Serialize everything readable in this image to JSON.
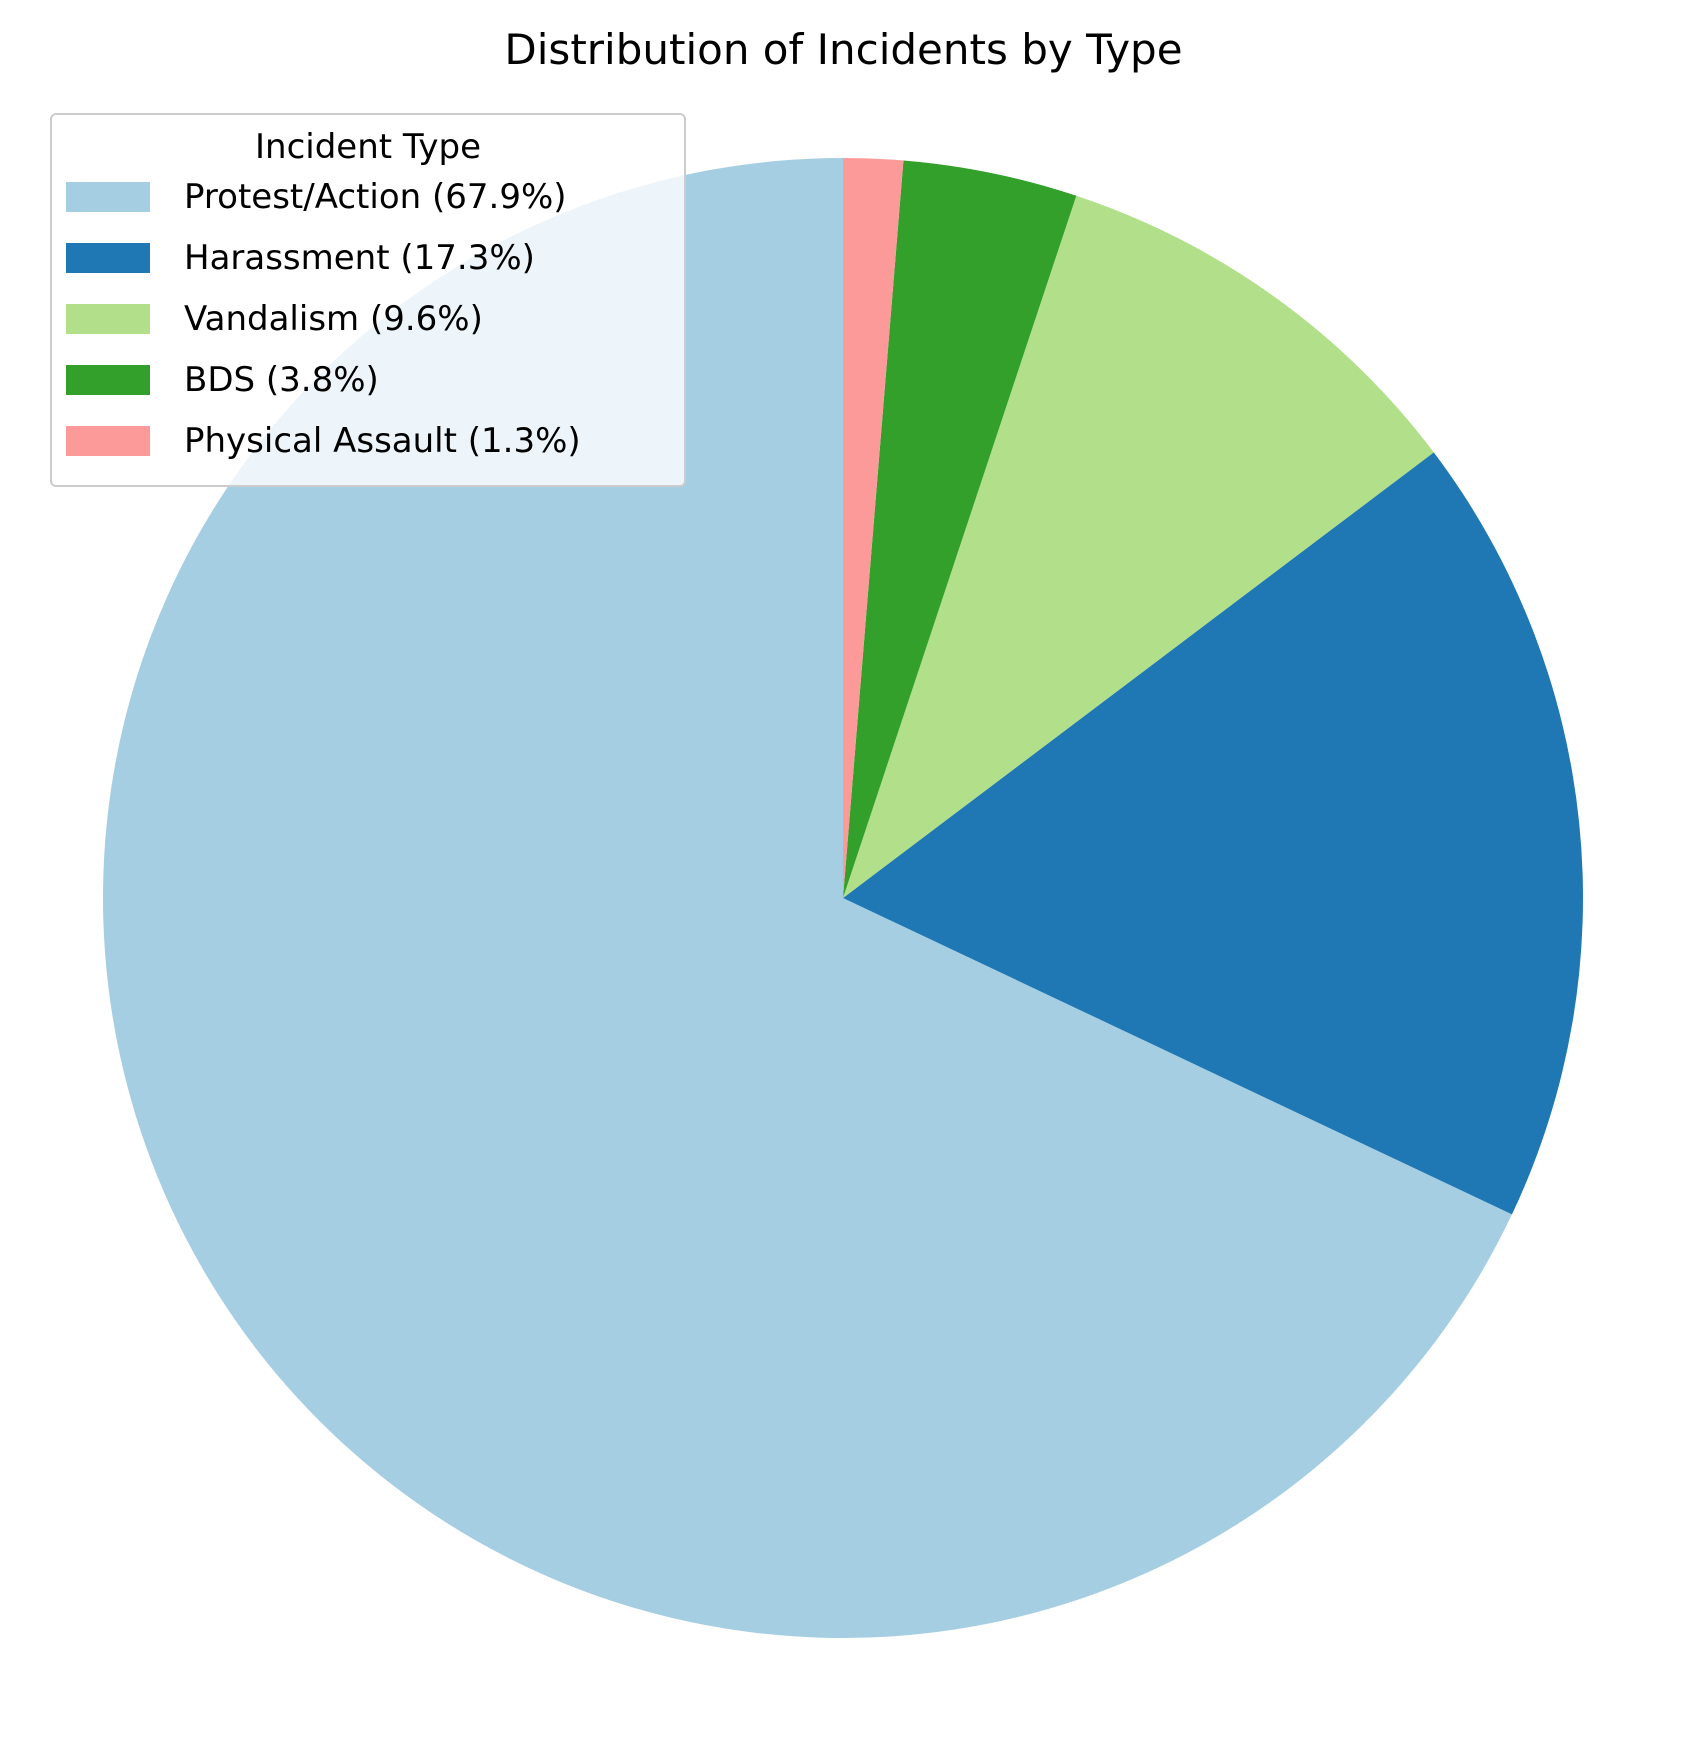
{
  "chart_data": {
    "type": "pie",
    "title": "Distribution of Incidents by Type",
    "legend": {
      "title": "Incident Type",
      "placement": "top-left"
    },
    "start_angle_deg": 90,
    "direction": "counterclockwise",
    "slices": [
      {
        "label": "Protest/Action (67.9%)",
        "value": 67.9,
        "color": "#a6cee3"
      },
      {
        "label": "Harassment (17.3%)",
        "value": 17.3,
        "color": "#1f78b4"
      },
      {
        "label": "Vandalism (9.6%)",
        "value": 9.6,
        "color": "#b2df8a"
      },
      {
        "label": "BDS (3.8%)",
        "value": 3.8,
        "color": "#33a02c"
      },
      {
        "label": "Physical Assault (1.3%)",
        "value": 1.3,
        "color": "#fb9a99"
      }
    ]
  }
}
